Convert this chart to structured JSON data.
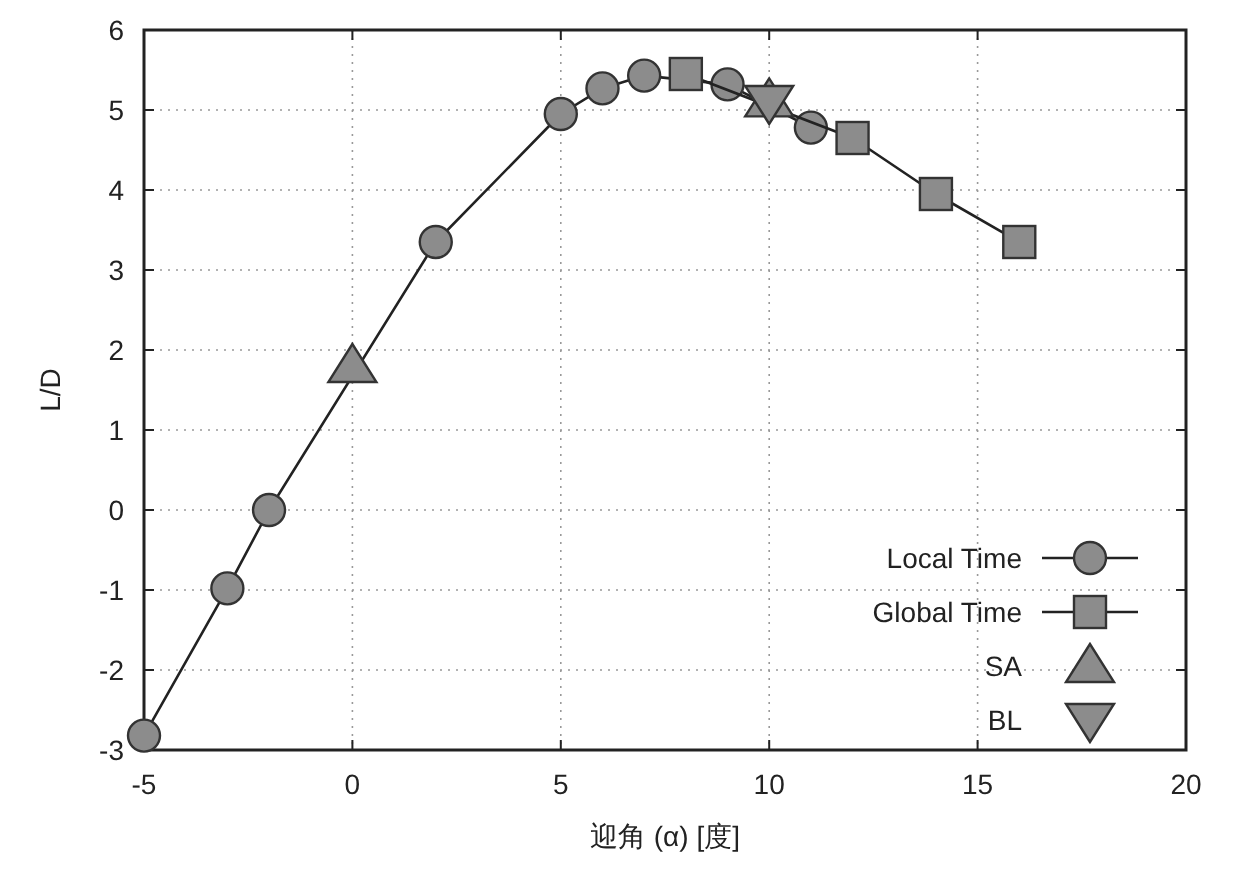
{
  "chart_data": {
    "type": "line",
    "xlabel": "迎角 (α) [度]",
    "ylabel": "L/D",
    "xlim": [
      -5,
      20
    ],
    "ylim": [
      -3,
      6
    ],
    "xticks": [
      -5,
      0,
      5,
      10,
      15,
      20
    ],
    "yticks": [
      -3,
      -2,
      -1,
      0,
      1,
      2,
      3,
      4,
      5,
      6
    ],
    "grid": true,
    "legend": "bottom right",
    "line_style": "solid",
    "series": [
      {
        "name": "Local Time",
        "marker": "circle",
        "color": "#8c8c8c",
        "x": [
          -5,
          -3,
          -2,
          2,
          5,
          6,
          7,
          9,
          11
        ],
        "values": [
          -2.82,
          -0.98,
          0.0,
          3.35,
          4.95,
          5.27,
          5.43,
          5.32,
          4.78
        ]
      },
      {
        "name": "Global Time",
        "marker": "square",
        "color": "#8c8c8c",
        "x": [
          8,
          12,
          14,
          16
        ],
        "values": [
          5.45,
          4.65,
          3.95,
          3.35
        ]
      },
      {
        "name": "SA",
        "type": "scatter",
        "marker": "triangle",
        "color": "#8c8c8c",
        "x": [
          0,
          10
        ],
        "values": [
          1.8,
          5.12
        ]
      },
      {
        "name": "BL",
        "type": "scatter",
        "marker": "triangle_down",
        "color": "#8c8c8c",
        "x": [
          10
        ],
        "values": [
          5.1
        ]
      }
    ]
  }
}
